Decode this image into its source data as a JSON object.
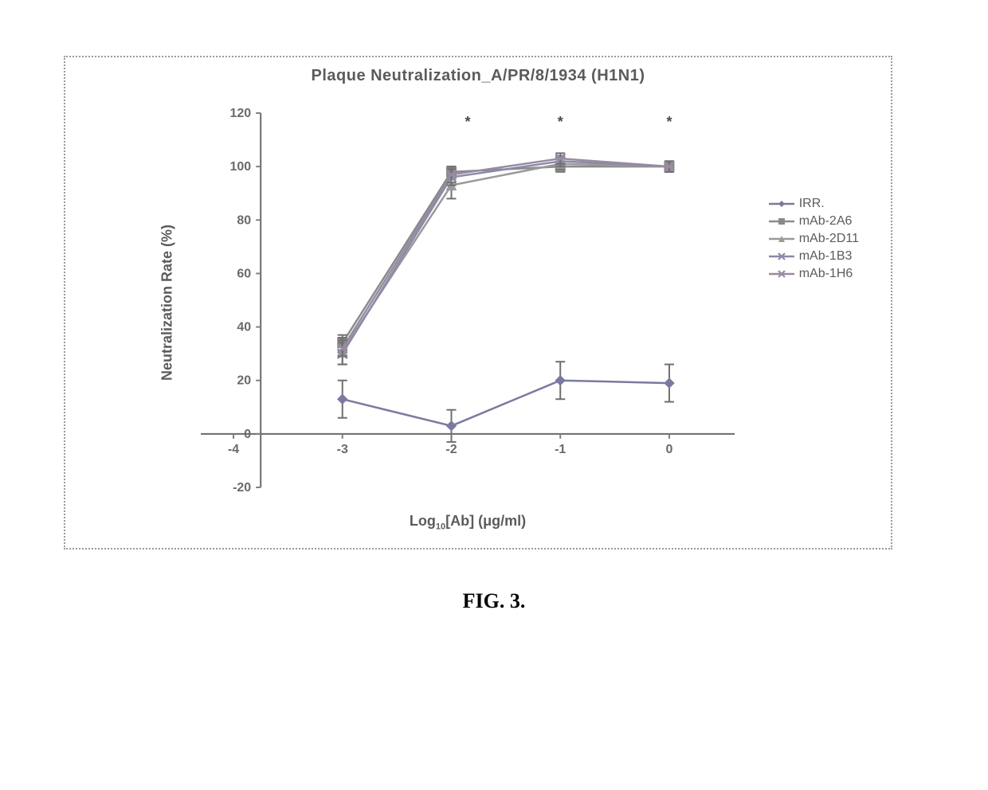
{
  "figure_caption": "FIG. 3.",
  "chart": {
    "type": "line",
    "title": "Plaque Neutralization_A/PR/8/1934 (H1N1)",
    "title_fontsize": 20,
    "title_color": "#5b5b5b",
    "background_color": "#ffffff",
    "border_color": "#9a9a9a",
    "border_style": "dotted",
    "axis_color": "#6a6a6a",
    "tick_color": "#808080",
    "label_fontsize": 18,
    "label_color": "#5b5b5b",
    "xlabel_html": "Log<sub>10</sub>[Ab] (μg/ml)",
    "ylabel": "Neutralization Rate (%)",
    "x": {
      "min": -4.3,
      "max": 0.6,
      "ticks": [
        -4,
        -3,
        -2,
        -1,
        0
      ]
    },
    "y": {
      "min": -20,
      "max": 120,
      "ticks": [
        -20,
        0,
        20,
        40,
        60,
        80,
        100,
        120
      ]
    },
    "line_width": 2.5,
    "marker_size": 6,
    "errorbar_color": "#707070",
    "errorbar_width": 2,
    "errorbar_cap": 6,
    "significance": {
      "symbol": "*",
      "x": [
        -1.85,
        -1,
        0
      ],
      "y": 115,
      "color": "#4a4a4a",
      "fontsize": 18
    },
    "series": [
      {
        "name": "IRR.",
        "color": "#7a7aa0",
        "marker": "diamond",
        "x": [
          -3,
          -2,
          -1,
          0
        ],
        "y": [
          13,
          3,
          20,
          19
        ],
        "err": [
          7,
          6,
          7,
          7
        ]
      },
      {
        "name": "mAb-2A6",
        "color": "#8a8a8a",
        "marker": "square",
        "x": [
          -3,
          -2,
          -1,
          0
        ],
        "y": [
          34,
          98,
          100,
          100
        ],
        "err": [
          3,
          2,
          2,
          2
        ]
      },
      {
        "name": "mAb-2D11",
        "color": "#9a9a9a",
        "marker": "triangle",
        "x": [
          -3,
          -2,
          -1,
          0
        ],
        "y": [
          31,
          93,
          101,
          100
        ],
        "err": [
          5,
          5,
          2,
          2
        ]
      },
      {
        "name": "mAb-1B3",
        "color": "#8a8aa8",
        "marker": "x",
        "x": [
          -3,
          -2,
          -1,
          0
        ],
        "y": [
          30,
          96,
          102,
          100
        ],
        "err": [
          4,
          3,
          2,
          2
        ]
      },
      {
        "name": "mAb-1H6",
        "color": "#9a8aa0",
        "marker": "x",
        "x": [
          -3,
          -2,
          -1,
          0
        ],
        "y": [
          32,
          97,
          103,
          100
        ],
        "err": [
          3,
          3,
          2,
          2
        ]
      }
    ],
    "legend": {
      "position": "right",
      "fontsize": 16,
      "color": "#5b5b5b",
      "prefix": "—",
      "items": [
        "IRR.",
        "mAb-2A6",
        "mAb-2D11",
        "mAb-1B3",
        "mAb-1H6"
      ]
    }
  }
}
